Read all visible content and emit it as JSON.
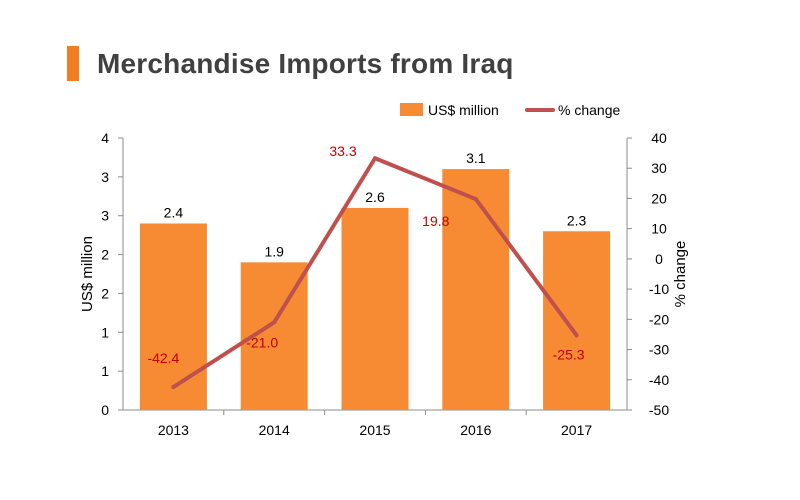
{
  "title": "Merchandise Imports from Iraq",
  "colors": {
    "bar": "#f68b34",
    "line": "#c0504d",
    "accent": "#f07f21",
    "label_neg": "#c00000",
    "axis": "#8c8c8c",
    "text": "#000000",
    "title": "#404040"
  },
  "chart_data": {
    "type": "bar",
    "title": "Merchandise Imports from Iraq",
    "categories": [
      "2013",
      "2014",
      "2015",
      "2016",
      "2017"
    ],
    "series": [
      {
        "name": "US$ million",
        "type": "bar",
        "axis": "left",
        "values": [
          2.4,
          1.9,
          2.6,
          3.1,
          2.3
        ],
        "labels": [
          "2.4",
          "1.9",
          "2.6",
          "3.1",
          "2.3"
        ]
      },
      {
        "name": "% change",
        "type": "line",
        "axis": "right",
        "values": [
          -42.4,
          -21.0,
          33.3,
          19.8,
          -25.3
        ],
        "labels": [
          "-42.4",
          "-21.0",
          "33.3",
          "19.8",
          "-25.3"
        ]
      }
    ],
    "ylabel": "US$ million",
    "y2label": "% change",
    "ylim": [
      0,
      3.5
    ],
    "y2lim": [
      -50,
      40
    ],
    "y_ticks": [
      "0",
      "1",
      "1",
      "2",
      "2",
      "3",
      "3",
      "4"
    ],
    "y2_ticks": [
      "-50",
      "-40",
      "-30",
      "-20",
      "-10",
      "0",
      "10",
      "20",
      "30",
      "40"
    ],
    "legend_position": "top-right",
    "grid": false
  }
}
